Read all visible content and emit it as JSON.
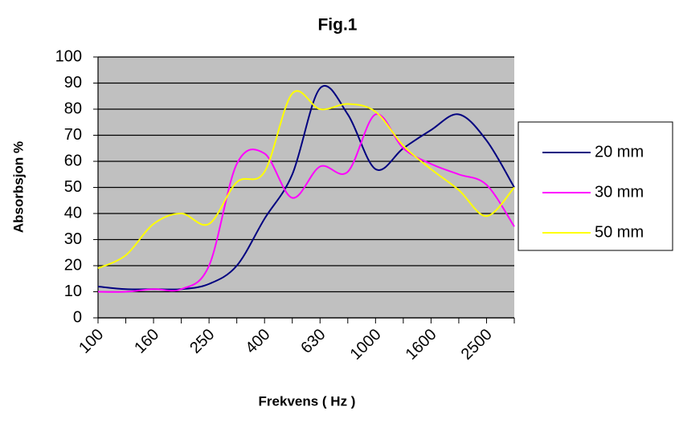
{
  "chart_data": {
    "type": "line",
    "title": "Fig.1",
    "x_label": "Frekvens ( Hz )",
    "y_label": "Absorbsjon %",
    "categories": [
      "100",
      null,
      "160",
      null,
      "250",
      null,
      "400",
      null,
      "630",
      null,
      "1000",
      null,
      "1600",
      null,
      "2500",
      null
    ],
    "series": [
      {
        "name": "20 mm",
        "color": "#000080",
        "values": [
          12,
          11,
          11,
          11,
          13,
          20,
          38,
          55,
          88,
          78,
          57,
          65,
          72,
          78,
          68,
          50
        ]
      },
      {
        "name": "30 mm",
        "color": "#ff00ff",
        "values": [
          10,
          10,
          11,
          11,
          20,
          59,
          63,
          46,
          58,
          56,
          78,
          65,
          59,
          55,
          51,
          35
        ]
      },
      {
        "name": "50 mm",
        "color": "#ffff00",
        "values": [
          19,
          24,
          36,
          40,
          36,
          52,
          56,
          86,
          80,
          82,
          79,
          66,
          57,
          49,
          39,
          50
        ]
      }
    ],
    "ylim": [
      0,
      100
    ],
    "yticks": [
      0,
      10,
      20,
      30,
      40,
      50,
      60,
      70,
      80,
      90,
      100
    ],
    "grid": true,
    "legend": "right",
    "plot_background": "#c0c0c0"
  }
}
